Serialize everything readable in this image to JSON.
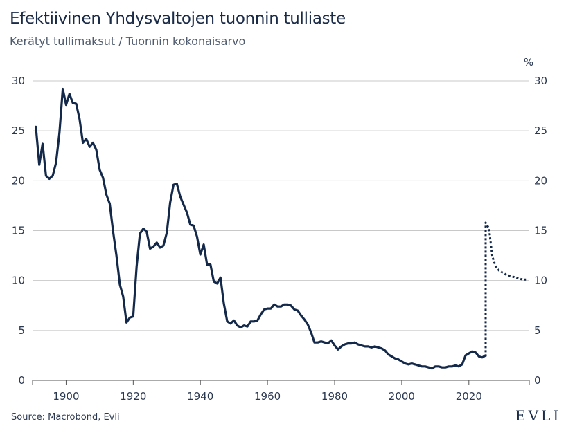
{
  "chart_data": {
    "type": "line",
    "title": "Efektiivinen Yhdysvaltojen tuonnin tulliaste",
    "subtitle": "Kerätyt tullimaksut / Tuonnin kokonaisarvo",
    "right_axis_unit": "%",
    "xlabel": "",
    "ylabel": "",
    "xlim": [
      1890,
      2038
    ],
    "ylim": [
      0,
      30
    ],
    "x_ticks": [
      "1900",
      "1920",
      "1940",
      "1960",
      "1980",
      "2000",
      "2020"
    ],
    "y_ticks": [
      "0",
      "5",
      "10",
      "15",
      "20",
      "25",
      "30"
    ],
    "grid": true,
    "legend": "none",
    "colors": {
      "line": "#14294a",
      "grid": "#c8c8c8"
    },
    "series": [
      {
        "style": "solid",
        "x": [
          1891,
          1892,
          1893,
          1894,
          1895,
          1896,
          1897,
          1898,
          1899,
          1900,
          1901,
          1902,
          1903,
          1904,
          1905,
          1906,
          1907,
          1908,
          1909,
          1910,
          1911,
          1912,
          1913,
          1914,
          1915,
          1916,
          1917,
          1918,
          1919,
          1920,
          1921,
          1922,
          1923,
          1924,
          1925,
          1926,
          1927,
          1928,
          1929,
          1930,
          1931,
          1932,
          1933,
          1934,
          1935,
          1936,
          1937,
          1938,
          1939,
          1940,
          1941,
          1942,
          1943,
          1944,
          1945,
          1946,
          1947,
          1948,
          1949,
          1950,
          1951,
          1952,
          1953,
          1954,
          1955,
          1956,
          1957,
          1958,
          1959,
          1960,
          1961,
          1962,
          1963,
          1964,
          1965,
          1966,
          1967,
          1968,
          1969,
          1970,
          1971,
          1972,
          1973,
          1974,
          1975,
          1976,
          1977,
          1978,
          1979,
          1980,
          1981,
          1982,
          1983,
          1984,
          1985,
          1986,
          1987,
          1988,
          1989,
          1990,
          1991,
          1992,
          1993,
          1994,
          1995,
          1996,
          1997,
          1998,
          1999,
          2000,
          2001,
          2002,
          2003,
          2004,
          2005,
          2006,
          2007,
          2008,
          2009,
          2010,
          2011,
          2012,
          2013,
          2014,
          2015,
          2016,
          2017,
          2018,
          2019,
          2020,
          2021,
          2022,
          2023,
          2024,
          2025
        ],
        "y": [
          25.4,
          21.6,
          23.7,
          20.5,
          20.2,
          20.5,
          21.8,
          24.8,
          29.2,
          27.6,
          28.7,
          27.8,
          27.7,
          26.2,
          23.8,
          24.2,
          23.4,
          23.8,
          23.1,
          21.1,
          20.3,
          18.6,
          17.7,
          14.9,
          12.5,
          9.6,
          8.4,
          5.8,
          6.3,
          6.4,
          11.4,
          14.7,
          15.2,
          14.9,
          13.2,
          13.4,
          13.8,
          13.3,
          13.5,
          14.8,
          17.8,
          19.6,
          19.7,
          18.4,
          17.6,
          16.8,
          15.6,
          15.5,
          14.4,
          12.6,
          13.6,
          11.6,
          11.6,
          9.9,
          9.7,
          10.3,
          7.7,
          5.9,
          5.7,
          6.0,
          5.5,
          5.3,
          5.5,
          5.4,
          5.9,
          5.9,
          6.0,
          6.6,
          7.1,
          7.2,
          7.2,
          7.6,
          7.4,
          7.4,
          7.6,
          7.6,
          7.5,
          7.1,
          7.0,
          6.5,
          6.1,
          5.6,
          4.8,
          3.8,
          3.8,
          3.9,
          3.8,
          3.7,
          4.0,
          3.5,
          3.1,
          3.4,
          3.6,
          3.7,
          3.7,
          3.8,
          3.6,
          3.5,
          3.4,
          3.4,
          3.3,
          3.4,
          3.3,
          3.2,
          3.0,
          2.6,
          2.4,
          2.2,
          2.1,
          1.9,
          1.7,
          1.6,
          1.7,
          1.6,
          1.5,
          1.4,
          1.4,
          1.3,
          1.2,
          1.4,
          1.4,
          1.3,
          1.3,
          1.4,
          1.4,
          1.5,
          1.4,
          1.6,
          2.5,
          2.7,
          2.9,
          2.8,
          2.4,
          2.3,
          2.5
        ]
      },
      {
        "style": "dotted",
        "x": [
          2025,
          2025,
          2026,
          2027,
          2028,
          2029,
          2030,
          2031,
          2032,
          2033,
          2034,
          2035,
          2036,
          2037
        ],
        "y": [
          2.4,
          15.8,
          15.2,
          12.4,
          11.4,
          11.0,
          10.8,
          10.6,
          10.5,
          10.4,
          10.3,
          10.2,
          10.1,
          10.1
        ]
      }
    ]
  },
  "footer": {
    "source": "Source: Macrobond, Evli",
    "logo": "EVLI"
  }
}
